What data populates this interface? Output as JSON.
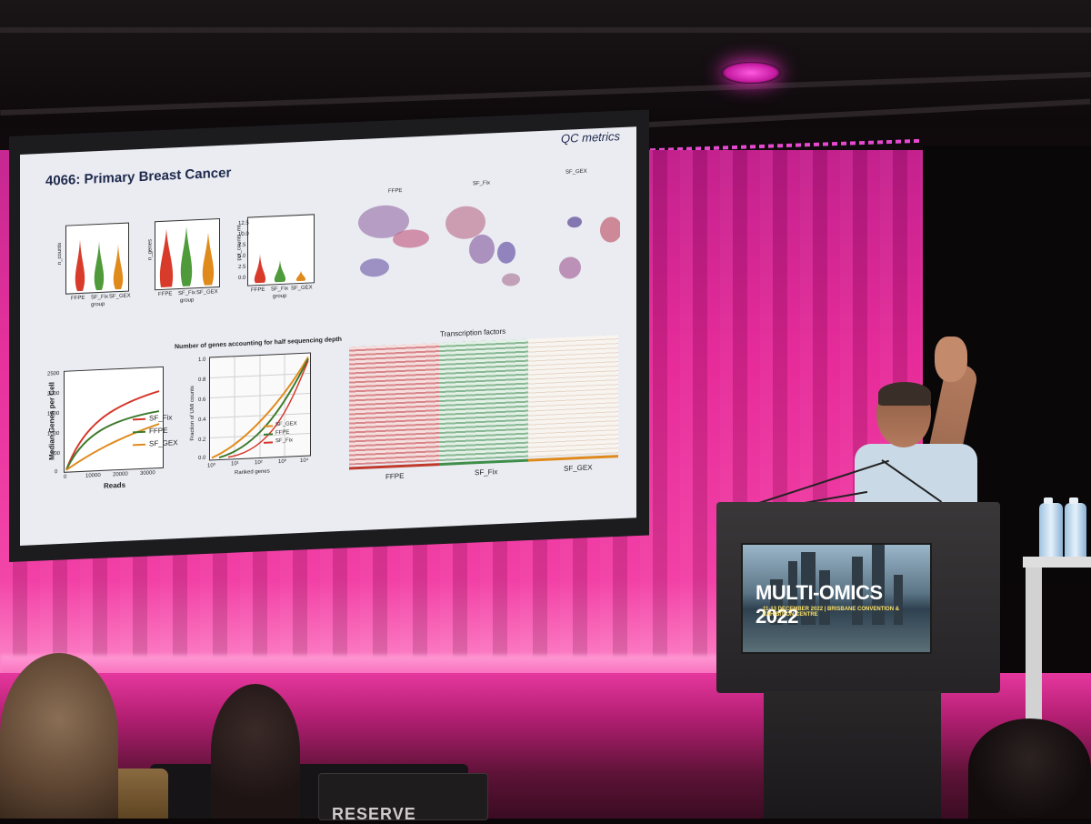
{
  "slide": {
    "title": "4066: Primary Breast Cancer",
    "corner_label": "QC metrics",
    "violins": {
      "ylabels": [
        "n_counts",
        "n_genes",
        "pct_counts_mt"
      ],
      "groups": [
        "FFPE",
        "SF_Fix",
        "SF_GEX"
      ],
      "xlabel": "group",
      "pct_ticks": [
        "12.5",
        "10.0",
        "7.5",
        "5.0",
        "2.5",
        "0.0"
      ],
      "colors": [
        "#d83b2a",
        "#4f9a3a",
        "#e08a1c"
      ]
    },
    "umap": {
      "labels": [
        "FFPE",
        "SF_Fix",
        "SF_GEX"
      ]
    },
    "saturation": {
      "ylabel": "Median Genes per Cell",
      "xlabel": "Reads",
      "yticks": [
        "2500",
        "2000",
        "1500",
        "1000",
        "500",
        "0"
      ],
      "xticks": [
        "0",
        "10000",
        "20000",
        "30000"
      ],
      "legend": [
        "SF_Fix",
        "FFPE",
        "SF_GEX"
      ],
      "colors": [
        "#d6352a",
        "#3d7a2c",
        "#e08a1c"
      ]
    },
    "half_depth": {
      "title": "Number of genes accounting for half sequencing depth",
      "ylabel": "Fraction of UMI counts",
      "xlabel": "Ranked genes",
      "yticks": [
        "1.0",
        "0.8",
        "0.6",
        "0.4",
        "0.2",
        "0.0"
      ],
      "xticks": [
        "10⁰",
        "10¹",
        "10²",
        "10³",
        "10⁴"
      ],
      "legend": [
        "SF_GEX",
        "FFPE",
        "SF_Fix"
      ]
    },
    "heatmap": {
      "title": "Transcription factors",
      "groups": [
        "FFPE",
        "SF_Fix",
        "SF_GEX"
      ],
      "group_colors": [
        "#c0392b",
        "#3f8f4a",
        "#e08a1c"
      ]
    }
  },
  "banner": {
    "title": "MULTI-OMICS 2022",
    "subtitle": "11-13 DECEMBER 2022 | BRISBANE CONVENTION & EXHIBITION CENTRE"
  },
  "seat_sign": {
    "text": "RESERVE"
  }
}
